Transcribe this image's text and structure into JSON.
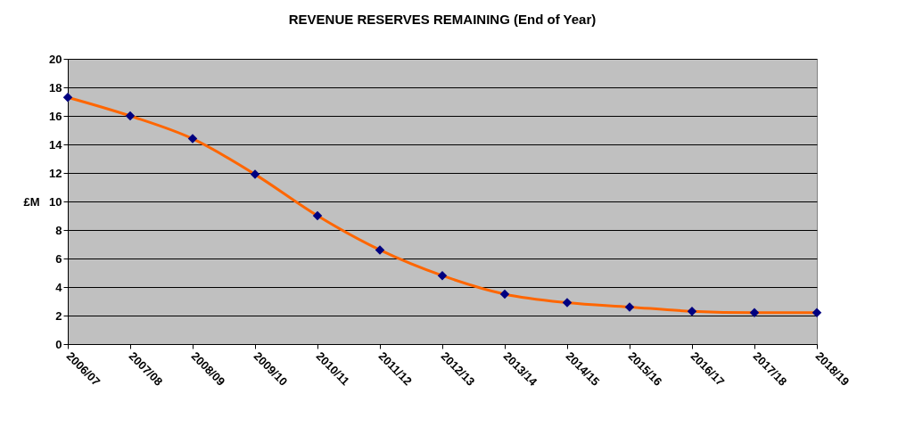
{
  "chart_data": {
    "type": "line",
    "title": "REVENUE RESERVES REMAINING (End of Year)",
    "ylabel": "£M",
    "categories": [
      "2006/07",
      "2007/08",
      "2008/09",
      "2009/10",
      "2010/11",
      "2011/12",
      "2012/13",
      "2013/14",
      "2014/15",
      "2015/16",
      "2016/17",
      "2017/18",
      "2018/19"
    ],
    "series": [
      {
        "color": "#ff6600",
        "marker": "none",
        "values": [
          17.3,
          16.0,
          14.4,
          11.9,
          9.0,
          6.6,
          4.8,
          3.5,
          2.9,
          2.6,
          2.3,
          2.2,
          2.2
        ]
      },
      {
        "type": "scatter",
        "color": "#000080",
        "marker": "diamond",
        "values": [
          17.3,
          16.0,
          14.4,
          11.9,
          9.0,
          6.6,
          4.8,
          3.5,
          2.9,
          2.6,
          2.3,
          2.2,
          2.2
        ]
      }
    ],
    "ylim": [
      0,
      20
    ],
    "yticks": [
      0,
      2,
      4,
      6,
      8,
      10,
      12,
      14,
      16,
      18,
      20
    ],
    "grid": "y",
    "line_style": "solid"
  }
}
